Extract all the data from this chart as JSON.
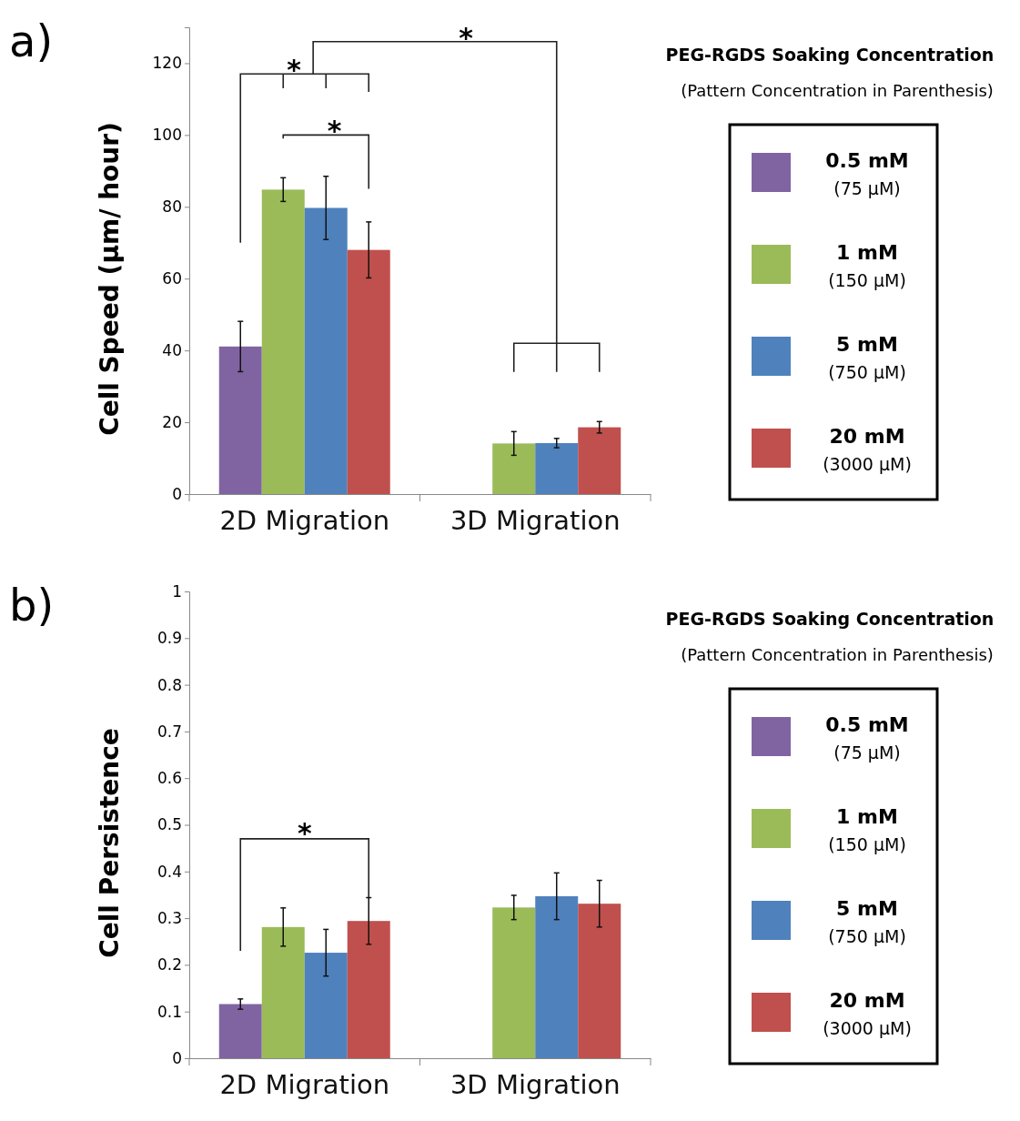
{
  "chart_data": [
    {
      "type": "bar",
      "title": "a)",
      "ylabel": "Cell Speed (µm/ hour)",
      "categories": [
        "2D Migration",
        "3D Migration"
      ],
      "ylim": [
        0,
        130
      ],
      "yticks": [
        0,
        20,
        40,
        60,
        80,
        100,
        120
      ],
      "legend": "right",
      "legend_title": "PEG-RGDS Soaking Concentration",
      "annotations": [
        "*",
        "*",
        "*",
        "(Pattern Concentration in Parenthesis)"
      ],
      "series": [
        {
          "name": "0.5 mM\n(75 µM)",
          "color": "#8064a2",
          "values": [
            41.1,
            null
          ],
          "errors": [
            7,
            null
          ]
        },
        {
          "name": "1 mM\n(150 µM)",
          "color": "#9bbb59",
          "values": [
            84.8,
            14.1
          ],
          "errors": [
            3.3,
            3.3
          ]
        },
        {
          "name": "5 mM\n(750 µM)",
          "color": "#4f81bd",
          "values": [
            79.7,
            14.2
          ],
          "errors": [
            8.8,
            1.3
          ]
        },
        {
          "name": "20 mM\n(3000 µM)",
          "color": "#c0504d",
          "values": [
            68,
            18.6
          ],
          "errors": [
            7.8,
            1.6
          ]
        }
      ]
    },
    {
      "type": "bar",
      "title": "b)",
      "ylabel": "Cell Persistence",
      "categories": [
        "2D Migration",
        "3D Migration"
      ],
      "ylim": [
        0,
        1
      ],
      "yticks": [
        0,
        0.1,
        0.2,
        0.3,
        0.4,
        0.5,
        0.6,
        0.7,
        0.8,
        0.9,
        1
      ],
      "legend": "right",
      "legend_title": "PEG-RGDS Soaking Concentration",
      "annotations": [
        "*",
        "(Pattern Concentration in Parenthesis)"
      ],
      "series": [
        {
          "name": "0.5 mM\n(75 µM)",
          "color": "#8064a2",
          "values": [
            0.116,
            null
          ],
          "errors": [
            0.011,
            null
          ]
        },
        {
          "name": "1 mM\n(150 µM)",
          "color": "#9bbb59",
          "values": [
            0.281,
            0.323
          ],
          "errors": [
            0.041,
            0.026
          ]
        },
        {
          "name": "5 mM\n(750 µM)",
          "color": "#4f81bd",
          "values": [
            0.226,
            0.347
          ],
          "errors": [
            0.05,
            0.05
          ]
        },
        {
          "name": "20 mM\n(3000 µM)",
          "color": "#c0504d",
          "values": [
            0.294,
            0.331
          ],
          "errors": [
            0.05,
            0.05
          ]
        }
      ]
    }
  ]
}
